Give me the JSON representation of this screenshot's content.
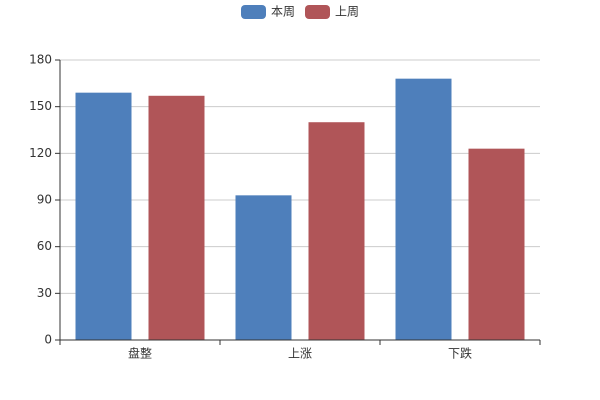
{
  "chart_data": {
    "type": "bar",
    "categories": [
      "盘整",
      "上涨",
      "下跌"
    ],
    "series": [
      {
        "name": "本周",
        "color": "#4e7fbb",
        "values": [
          159,
          93,
          168
        ]
      },
      {
        "name": "上周",
        "color": "#b05558",
        "values": [
          157,
          140,
          123
        ]
      }
    ],
    "ylim": [
      0,
      180
    ],
    "yticks": [
      0,
      30,
      60,
      90,
      120,
      150,
      180
    ],
    "grid": true,
    "legend": "top"
  }
}
